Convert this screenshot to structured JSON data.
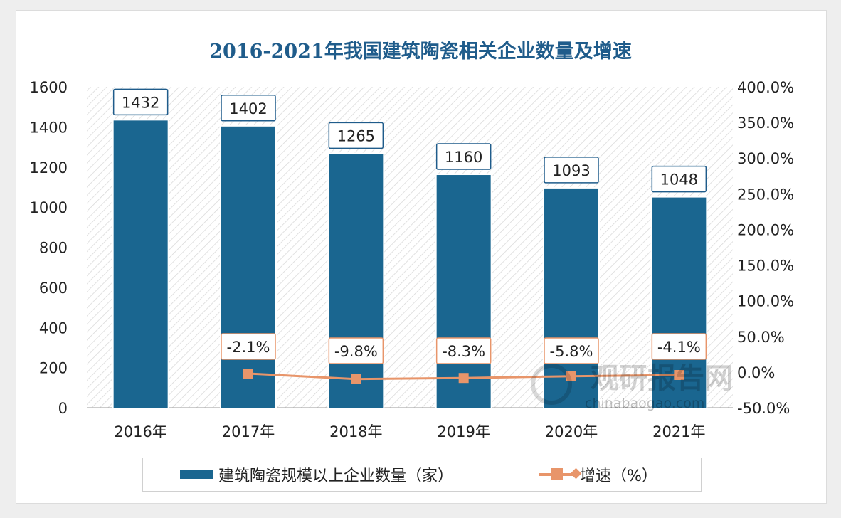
{
  "chart_data": {
    "type": "bar+line",
    "title": "2016-2021年我国建筑陶瓷相关企业数量及增速",
    "categories": [
      "2016年",
      "2017年",
      "2018年",
      "2019年",
      "2020年",
      "2021年"
    ],
    "series": [
      {
        "name": "建筑陶瓷规模以上企业数量（家）",
        "type": "bar",
        "axis": "left",
        "values": [
          1432,
          1402,
          1265,
          1160,
          1093,
          1048
        ],
        "labels": [
          "1432",
          "1402",
          "1265",
          "1160",
          "1093",
          "1048"
        ],
        "color": "#1a6690"
      },
      {
        "name": "增速（%）",
        "type": "line",
        "axis": "right",
        "values": [
          null,
          -2.1,
          -9.8,
          -8.3,
          -5.8,
          -4.1
        ],
        "labels": [
          "",
          "-2.1%",
          "-9.8%",
          "-8.3%",
          "-5.8%",
          "-4.1%"
        ],
        "color": "#e8956a"
      }
    ],
    "y_left": {
      "range": [
        0,
        1600
      ],
      "ticks": [
        "0",
        "200",
        "400",
        "600",
        "800",
        "1000",
        "1200",
        "1400",
        "1600"
      ]
    },
    "y_right": {
      "range": [
        -50,
        400
      ],
      "ticks": [
        "-50.0%",
        "0.0%",
        "50.0%",
        "100.0%",
        "150.0%",
        "200.0%",
        "250.0%",
        "300.0%",
        "350.0%",
        "400.0%"
      ]
    },
    "grid": false,
    "legend": "bottom"
  },
  "watermark": {
    "name": "观研报告网",
    "url": "chinabaogao.com"
  }
}
